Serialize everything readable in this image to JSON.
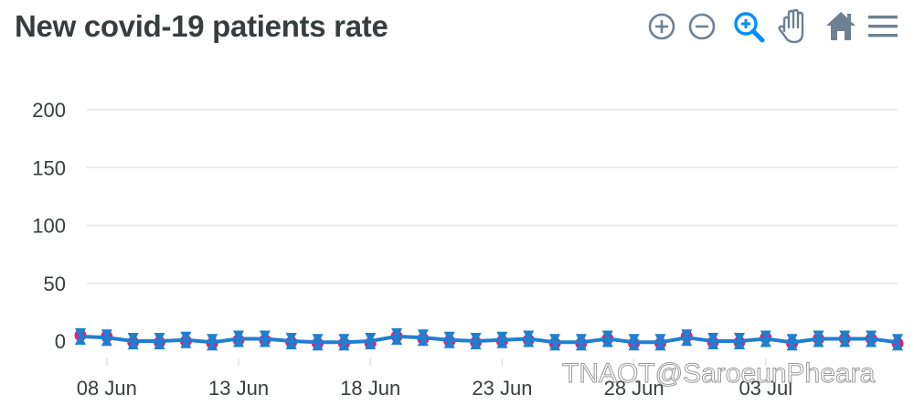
{
  "chart_data": {
    "type": "line",
    "title": "New covid-19 patients rate",
    "xlabel": "",
    "ylabel": "",
    "ylim": [
      0,
      200
    ],
    "yticks": [
      "0",
      "50",
      "100",
      "150",
      "200"
    ],
    "x_tick_labels": [
      "08 Jun",
      "13 Jun",
      "18 Jun",
      "23 Jun",
      "28 Jun",
      "03 Jul"
    ],
    "x_start_day": 7,
    "grid": true,
    "series": [
      {
        "color": "#e0207a",
        "marker": "circle",
        "values": [
          5,
          4,
          -1,
          -1,
          0,
          -2,
          1,
          1,
          -1,
          -2,
          -2,
          -2,
          4,
          2,
          0,
          -1,
          0,
          1,
          -2,
          -2,
          2,
          -2,
          -2,
          4,
          -1,
          -1,
          3,
          -2,
          2,
          2,
          2,
          -2
        ]
      },
      {
        "color": "#1e7fd0",
        "marker": "bowtie",
        "values": [
          4,
          3,
          0,
          0,
          1,
          -1,
          2,
          2,
          0,
          -1,
          -1,
          0,
          4,
          3,
          1,
          0,
          1,
          2,
          -1,
          -1,
          2,
          -1,
          -1,
          3,
          0,
          0,
          2,
          -1,
          2,
          2,
          2,
          -1
        ]
      }
    ]
  },
  "toolbar": {
    "zoom_in_icon": "zoom-in-icon",
    "zoom_out_icon": "zoom-out-icon",
    "selection_zoom_icon": "magnifier-plus-icon",
    "pan_icon": "hand-icon",
    "reset_icon": "home-icon",
    "menu_icon": "hamburger-icon",
    "active_color": "#008ffb",
    "icon_color": "#6e8192"
  },
  "watermark": "TNAOT@SaroeunPheara"
}
